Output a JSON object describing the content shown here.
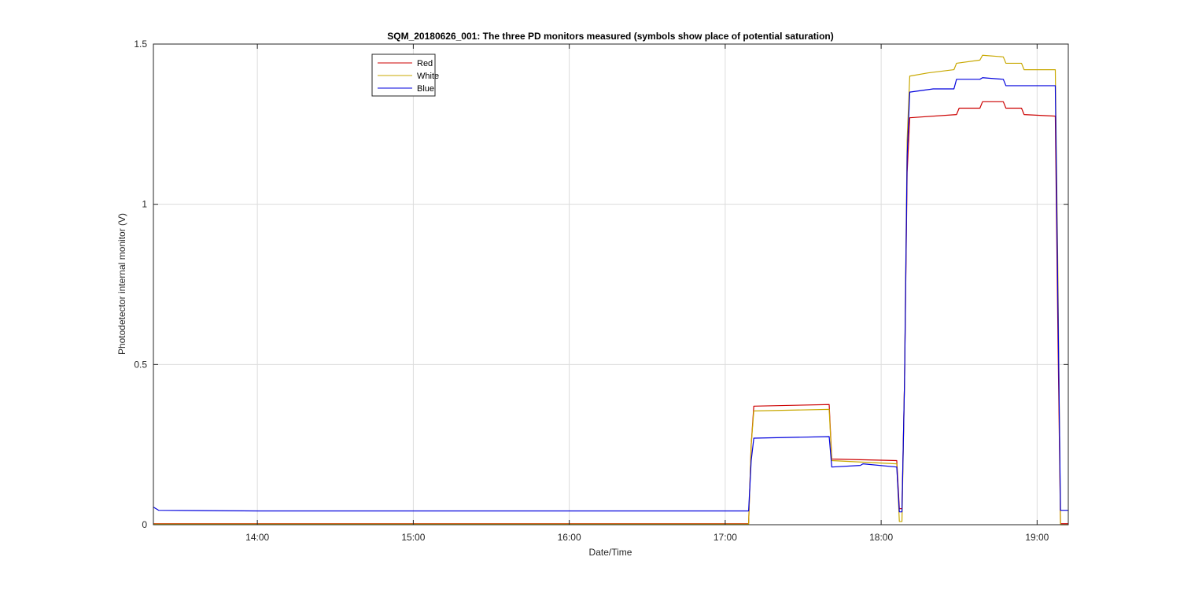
{
  "chart_data": {
    "type": "line",
    "title": "SQM_20180626_001: The three PD monitors measured (symbols show place of potential saturation)",
    "xlabel": "Date/Time",
    "ylabel": "Photodetector internal monitor (V)",
    "xlim": [
      "13:20",
      "19:12"
    ],
    "ylim": [
      0,
      1.5
    ],
    "x_ticks": [
      "14:00",
      "15:00",
      "16:00",
      "17:00",
      "18:00",
      "19:00"
    ],
    "y_ticks": [
      "0",
      "0.5",
      "1",
      "1.5"
    ],
    "y_tick_values": [
      0,
      0.5,
      1,
      1.5
    ],
    "grid": true,
    "legend_position": "top-left",
    "series": [
      {
        "name": "Red",
        "color": "#cc0000",
        "points": [
          [
            "13:20",
            0.003
          ],
          [
            "17:09",
            0.003
          ],
          [
            "17:10",
            0.25
          ],
          [
            "17:11",
            0.37
          ],
          [
            "17:40",
            0.375
          ],
          [
            "17:41",
            0.205
          ],
          [
            "18:06",
            0.2
          ],
          [
            "18:07",
            0.05
          ],
          [
            "18:08",
            0.05
          ],
          [
            "18:09",
            0.45
          ],
          [
            "18:10",
            1.1
          ],
          [
            "18:11",
            1.27
          ],
          [
            "18:29",
            1.28
          ],
          [
            "18:30",
            1.3
          ],
          [
            "18:38",
            1.3
          ],
          [
            "18:39",
            1.32
          ],
          [
            "18:47",
            1.32
          ],
          [
            "18:48",
            1.3
          ],
          [
            "18:54",
            1.3
          ],
          [
            "18:55",
            1.28
          ],
          [
            "19:07",
            1.275
          ],
          [
            "19:08",
            0.6
          ],
          [
            "19:09",
            0.003
          ],
          [
            "19:12",
            0.003
          ]
        ]
      },
      {
        "name": "White",
        "color": "#c8a800",
        "points": [
          [
            "13:20",
            0.002
          ],
          [
            "17:09",
            0.002
          ],
          [
            "17:10",
            0.25
          ],
          [
            "17:11",
            0.355
          ],
          [
            "17:40",
            0.36
          ],
          [
            "17:41",
            0.2
          ],
          [
            "18:06",
            0.19
          ],
          [
            "18:07",
            0.01
          ],
          [
            "18:08",
            0.01
          ],
          [
            "18:09",
            0.45
          ],
          [
            "18:10",
            1.2
          ],
          [
            "18:11",
            1.4
          ],
          [
            "18:18",
            1.41
          ],
          [
            "18:28",
            1.42
          ],
          [
            "18:29",
            1.44
          ],
          [
            "18:38",
            1.45
          ],
          [
            "18:39",
            1.465
          ],
          [
            "18:47",
            1.46
          ],
          [
            "18:48",
            1.44
          ],
          [
            "18:54",
            1.44
          ],
          [
            "18:55",
            1.42
          ],
          [
            "19:07",
            1.42
          ],
          [
            "19:08",
            0.78
          ],
          [
            "19:09",
            0.0
          ],
          [
            "19:12",
            0.0
          ]
        ]
      },
      {
        "name": "Blue",
        "color": "#0000dd",
        "points": [
          [
            "13:20",
            0.055
          ],
          [
            "13:22",
            0.045
          ],
          [
            "14:00",
            0.043
          ],
          [
            "16:00",
            0.043
          ],
          [
            "17:09",
            0.043
          ],
          [
            "17:10",
            0.2
          ],
          [
            "17:11",
            0.27
          ],
          [
            "17:40",
            0.275
          ],
          [
            "17:41",
            0.18
          ],
          [
            "17:52",
            0.185
          ],
          [
            "17:53",
            0.19
          ],
          [
            "18:06",
            0.18
          ],
          [
            "18:07",
            0.04
          ],
          [
            "18:08",
            0.04
          ],
          [
            "18:09",
            0.45
          ],
          [
            "18:10",
            1.15
          ],
          [
            "18:11",
            1.35
          ],
          [
            "18:20",
            1.36
          ],
          [
            "18:28",
            1.36
          ],
          [
            "18:29",
            1.39
          ],
          [
            "18:38",
            1.39
          ],
          [
            "18:39",
            1.395
          ],
          [
            "18:47",
            1.39
          ],
          [
            "18:48",
            1.37
          ],
          [
            "19:07",
            1.37
          ],
          [
            "19:08",
            0.7
          ],
          [
            "19:09",
            0.045
          ],
          [
            "19:12",
            0.045
          ]
        ]
      }
    ]
  }
}
